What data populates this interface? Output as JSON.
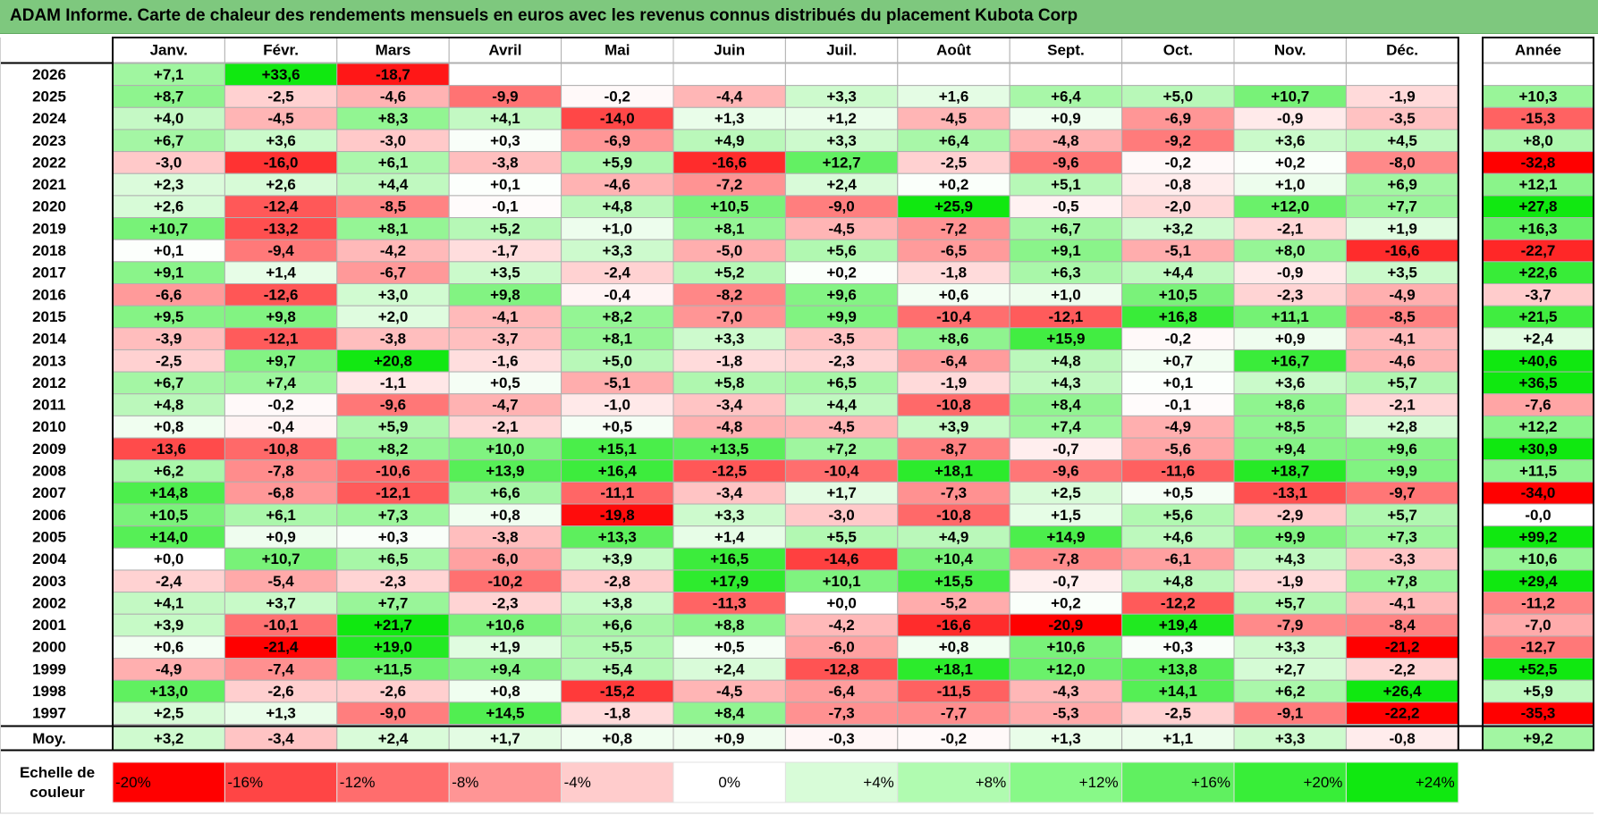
{
  "title": "ADAM Informe. Carte de chaleur des rendements mensuels en euros avec les revenus connus distribués du placement Kubota Corp",
  "chart_data": {
    "type": "heatmap",
    "months": [
      "Janv.",
      "Févr.",
      "Mars",
      "Avril",
      "Mai",
      "Juin",
      "Juil.",
      "Août",
      "Sept.",
      "Oct.",
      "Nov.",
      "Déc."
    ],
    "year_header": "Année",
    "rows": [
      {
        "year": "2026",
        "values": [
          "+7,1",
          "+33,6",
          "-18,7",
          "",
          "",
          "",
          "",
          "",
          "",
          "",
          "",
          ""
        ],
        "annual": ""
      },
      {
        "year": "2025",
        "values": [
          "+8,7",
          "-2,5",
          "-4,6",
          "-9,9",
          "-0,2",
          "-4,4",
          "+3,3",
          "+1,6",
          "+6,4",
          "+5,0",
          "+10,7",
          "-1,9"
        ],
        "annual": "+10,3"
      },
      {
        "year": "2024",
        "values": [
          "+4,0",
          "-4,5",
          "+8,3",
          "+4,1",
          "-14,0",
          "+1,3",
          "+1,2",
          "-4,5",
          "+0,9",
          "-6,9",
          "-0,9",
          "-3,5"
        ],
        "annual": "-15,3"
      },
      {
        "year": "2023",
        "values": [
          "+6,7",
          "+3,6",
          "-3,0",
          "+0,3",
          "-6,9",
          "+4,9",
          "+3,3",
          "+6,4",
          "-4,8",
          "-9,2",
          "+3,6",
          "+4,5"
        ],
        "annual": "+8,0"
      },
      {
        "year": "2022",
        "values": [
          "-3,0",
          "-16,0",
          "+6,1",
          "-3,8",
          "+5,9",
          "-16,6",
          "+12,7",
          "-2,5",
          "-9,6",
          "-0,2",
          "+0,2",
          "-8,0"
        ],
        "annual": "-32,8"
      },
      {
        "year": "2021",
        "values": [
          "+2,3",
          "+2,6",
          "+4,4",
          "+0,1",
          "-4,6",
          "-7,2",
          "+2,4",
          "+0,2",
          "+5,1",
          "-0,8",
          "+1,0",
          "+6,9"
        ],
        "annual": "+12,1"
      },
      {
        "year": "2020",
        "values": [
          "+2,6",
          "-12,4",
          "-8,5",
          "-0,1",
          "+4,8",
          "+10,5",
          "-9,0",
          "+25,9",
          "-0,5",
          "-2,0",
          "+12,0",
          "+7,7"
        ],
        "annual": "+27,8"
      },
      {
        "year": "2019",
        "values": [
          "+10,7",
          "-13,2",
          "+8,1",
          "+5,2",
          "+1,0",
          "+8,1",
          "-4,5",
          "-7,2",
          "+6,7",
          "+3,2",
          "-2,1",
          "+1,9"
        ],
        "annual": "+16,3"
      },
      {
        "year": "2018",
        "values": [
          "+0,1",
          "-9,4",
          "-4,2",
          "-1,7",
          "+3,3",
          "-5,0",
          "+5,6",
          "-6,5",
          "+9,1",
          "-5,1",
          "+8,0",
          "-16,6"
        ],
        "annual": "-22,7"
      },
      {
        "year": "2017",
        "values": [
          "+9,1",
          "+1,4",
          "-6,7",
          "+3,5",
          "-2,4",
          "+5,2",
          "+0,2",
          "-1,8",
          "+6,3",
          "+4,4",
          "-0,9",
          "+3,5"
        ],
        "annual": "+22,6"
      },
      {
        "year": "2016",
        "values": [
          "-6,6",
          "-12,6",
          "+3,0",
          "+9,8",
          "-0,4",
          "-8,2",
          "+9,6",
          "+0,6",
          "+1,0",
          "+10,5",
          "-2,3",
          "-4,9"
        ],
        "annual": "-3,7"
      },
      {
        "year": "2015",
        "values": [
          "+9,5",
          "+9,8",
          "+2,0",
          "-4,1",
          "+8,2",
          "-7,0",
          "+9,9",
          "-10,4",
          "-12,1",
          "+16,8",
          "+11,1",
          "-8,5"
        ],
        "annual": "+21,5"
      },
      {
        "year": "2014",
        "values": [
          "-3,9",
          "-12,1",
          "-3,8",
          "-3,7",
          "+8,1",
          "+3,3",
          "-3,5",
          "+8,6",
          "+15,9",
          "-0,2",
          "+0,9",
          "-4,1"
        ],
        "annual": "+2,4"
      },
      {
        "year": "2013",
        "values": [
          "-2,5",
          "+9,7",
          "+20,8",
          "-1,6",
          "+5,0",
          "-1,8",
          "-2,3",
          "-6,4",
          "+4,8",
          "+0,7",
          "+16,7",
          "-4,6"
        ],
        "annual": "+40,6"
      },
      {
        "year": "2012",
        "values": [
          "+6,7",
          "+7,4",
          "-1,1",
          "+0,5",
          "-5,1",
          "+5,8",
          "+6,5",
          "-1,9",
          "+4,3",
          "+0,1",
          "+3,6",
          "+5,7"
        ],
        "annual": "+36,5"
      },
      {
        "year": "2011",
        "values": [
          "+4,8",
          "-0,2",
          "-9,6",
          "-4,7",
          "-1,0",
          "-3,4",
          "+4,4",
          "-10,8",
          "+8,4",
          "-0,1",
          "+8,6",
          "-2,1"
        ],
        "annual": "-7,6"
      },
      {
        "year": "2010",
        "values": [
          "+0,8",
          "-0,4",
          "+5,9",
          "-2,1",
          "+0,5",
          "-4,8",
          "-4,5",
          "+3,9",
          "+7,4",
          "-4,9",
          "+8,5",
          "+2,8"
        ],
        "annual": "+12,2"
      },
      {
        "year": "2009",
        "values": [
          "-13,6",
          "-10,8",
          "+8,2",
          "+10,0",
          "+15,1",
          "+13,5",
          "+7,2",
          "-8,7",
          "-0,7",
          "-5,6",
          "+9,4",
          "+9,6"
        ],
        "annual": "+30,9"
      },
      {
        "year": "2008",
        "values": [
          "+6,2",
          "-7,8",
          "-10,6",
          "+13,9",
          "+16,4",
          "-12,5",
          "-10,4",
          "+18,1",
          "-9,6",
          "-11,6",
          "+18,7",
          "+9,9"
        ],
        "annual": "+11,5"
      },
      {
        "year": "2007",
        "values": [
          "+14,8",
          "-6,8",
          "-12,1",
          "+6,6",
          "-11,1",
          "-3,4",
          "+1,7",
          "-7,3",
          "+2,5",
          "+0,5",
          "-13,1",
          "-9,7"
        ],
        "annual": "-34,0"
      },
      {
        "year": "2006",
        "values": [
          "+10,5",
          "+6,1",
          "+7,3",
          "+0,8",
          "-19,8",
          "+3,3",
          "-3,0",
          "-10,8",
          "+1,5",
          "+5,6",
          "-2,9",
          "+5,7"
        ],
        "annual": "-0,0"
      },
      {
        "year": "2005",
        "values": [
          "+14,0",
          "+0,9",
          "+0,3",
          "-3,8",
          "+13,3",
          "+1,4",
          "+5,5",
          "+4,9",
          "+14,9",
          "+4,6",
          "+9,9",
          "+7,3"
        ],
        "annual": "+99,2"
      },
      {
        "year": "2004",
        "values": [
          "+0,0",
          "+10,7",
          "+6,5",
          "-6,0",
          "+3,9",
          "+16,5",
          "-14,6",
          "+10,4",
          "-7,8",
          "-6,1",
          "+4,3",
          "-3,3"
        ],
        "annual": "+10,6"
      },
      {
        "year": "2003",
        "values": [
          "-2,4",
          "-5,4",
          "-2,3",
          "-10,2",
          "-2,8",
          "+17,9",
          "+10,1",
          "+15,5",
          "-0,7",
          "+4,8",
          "-1,9",
          "+7,8"
        ],
        "annual": "+29,4"
      },
      {
        "year": "2002",
        "values": [
          "+4,1",
          "+3,7",
          "+7,7",
          "-2,3",
          "+3,8",
          "-11,3",
          "+0,0",
          "-5,2",
          "+0,2",
          "-12,2",
          "+5,7",
          "-4,1"
        ],
        "annual": "-11,2"
      },
      {
        "year": "2001",
        "values": [
          "+3,9",
          "-10,1",
          "+21,7",
          "+10,6",
          "+6,6",
          "+8,8",
          "-4,2",
          "-16,6",
          "-20,9",
          "+19,4",
          "-7,9",
          "-8,4"
        ],
        "annual": "-7,0"
      },
      {
        "year": "2000",
        "values": [
          "+0,6",
          "-21,4",
          "+19,0",
          "+1,9",
          "+5,5",
          "+0,5",
          "-6,0",
          "+0,8",
          "+10,6",
          "+0,3",
          "+3,3",
          "-21,2"
        ],
        "annual": "-12,7"
      },
      {
        "year": "1999",
        "values": [
          "-4,9",
          "-7,4",
          "+11,5",
          "+9,4",
          "+5,4",
          "+2,4",
          "-12,8",
          "+18,1",
          "+12,0",
          "+13,8",
          "+2,7",
          "-2,2"
        ],
        "annual": "+52,5"
      },
      {
        "year": "1998",
        "values": [
          "+13,0",
          "-2,6",
          "-2,6",
          "+0,8",
          "-15,2",
          "-4,5",
          "-6,4",
          "-11,5",
          "-4,3",
          "+14,1",
          "+6,2",
          "+26,4"
        ],
        "annual": "+5,9"
      },
      {
        "year": "1997",
        "values": [
          "+2,5",
          "+1,3",
          "-9,0",
          "+14,5",
          "-1,8",
          "+8,4",
          "-7,3",
          "-7,7",
          "-5,3",
          "-2,5",
          "-9,1",
          "-22,2"
        ],
        "annual": "-35,3"
      }
    ],
    "average": {
      "label": "Moy.",
      "values": [
        "+3,2",
        "-3,4",
        "+2,4",
        "+1,7",
        "+0,8",
        "+0,9",
        "-0,3",
        "-0,2",
        "+1,3",
        "+1,1",
        "+3,3",
        "-0,8"
      ],
      "annual": "+9,2"
    },
    "scale": {
      "title": [
        "Echelle de",
        "couleur"
      ],
      "labels": [
        "-20%",
        "-16%",
        "-12%",
        "-8%",
        "-4%",
        "0%",
        "+4%",
        "+8%",
        "+12%",
        "+16%",
        "+20%",
        "+24%"
      ],
      "colors": [
        "#ff0000",
        "#ff4545",
        "#ff6d6d",
        "#ff9595",
        "#ffcccc",
        "#ffffff",
        "#d8fcd8",
        "#b0fbb0",
        "#88f988",
        "#60f060",
        "#38ee38",
        "#10e810"
      ]
    },
    "colors": {
      "title_band": "#7ec87e",
      "grid_line": "#b0b0b0",
      "frame": "#000000"
    }
  }
}
